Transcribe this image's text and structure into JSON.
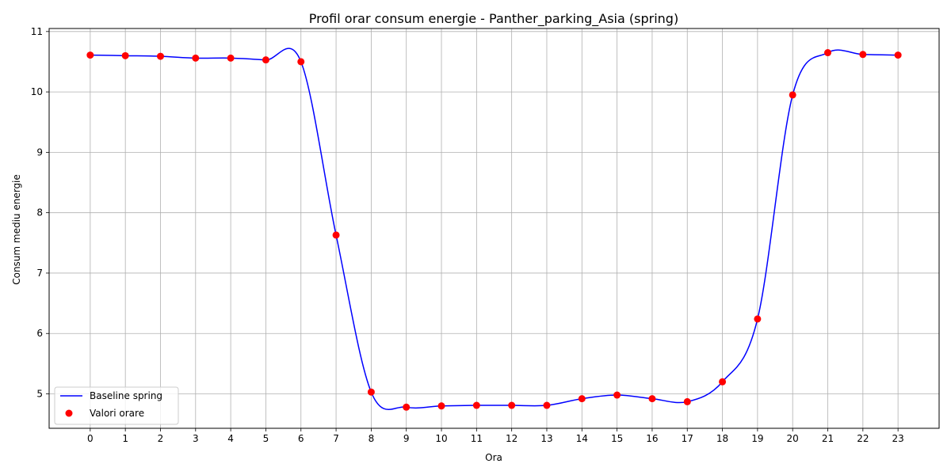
{
  "chart_data": {
    "type": "line",
    "title": "Profil orar consum energie - Panther_parking_Asia (spring)",
    "xlabel": "Ora",
    "ylabel": "Consum mediu energie",
    "x": [
      0,
      1,
      2,
      3,
      4,
      5,
      6,
      7,
      8,
      9,
      10,
      11,
      12,
      13,
      14,
      15,
      16,
      17,
      18,
      19,
      20,
      21,
      22,
      23
    ],
    "xlim": [
      -1.17,
      24.17
    ],
    "ylim": [
      4.43,
      11.05
    ],
    "yticks": [
      5,
      6,
      7,
      8,
      9,
      10,
      11
    ],
    "grid": true,
    "legend_position": "lower-left",
    "series": [
      {
        "name": "Baseline spring",
        "kind": "smooth-line",
        "color": "#0000ff",
        "values": [
          10.61,
          10.6,
          10.59,
          10.56,
          10.56,
          10.53,
          10.5,
          7.63,
          5.03,
          4.78,
          4.8,
          4.81,
          4.81,
          4.81,
          4.92,
          4.98,
          4.92,
          4.87,
          5.2,
          6.24,
          9.95,
          10.65,
          10.62,
          10.61
        ]
      },
      {
        "name": "Valori orare",
        "kind": "scatter",
        "color": "#ff0000",
        "values": [
          10.61,
          10.6,
          10.59,
          10.56,
          10.56,
          10.53,
          10.5,
          7.63,
          5.03,
          4.78,
          4.8,
          4.81,
          4.81,
          4.81,
          4.92,
          4.98,
          4.92,
          4.87,
          5.2,
          6.24,
          9.95,
          10.65,
          10.62,
          10.61
        ]
      }
    ]
  }
}
